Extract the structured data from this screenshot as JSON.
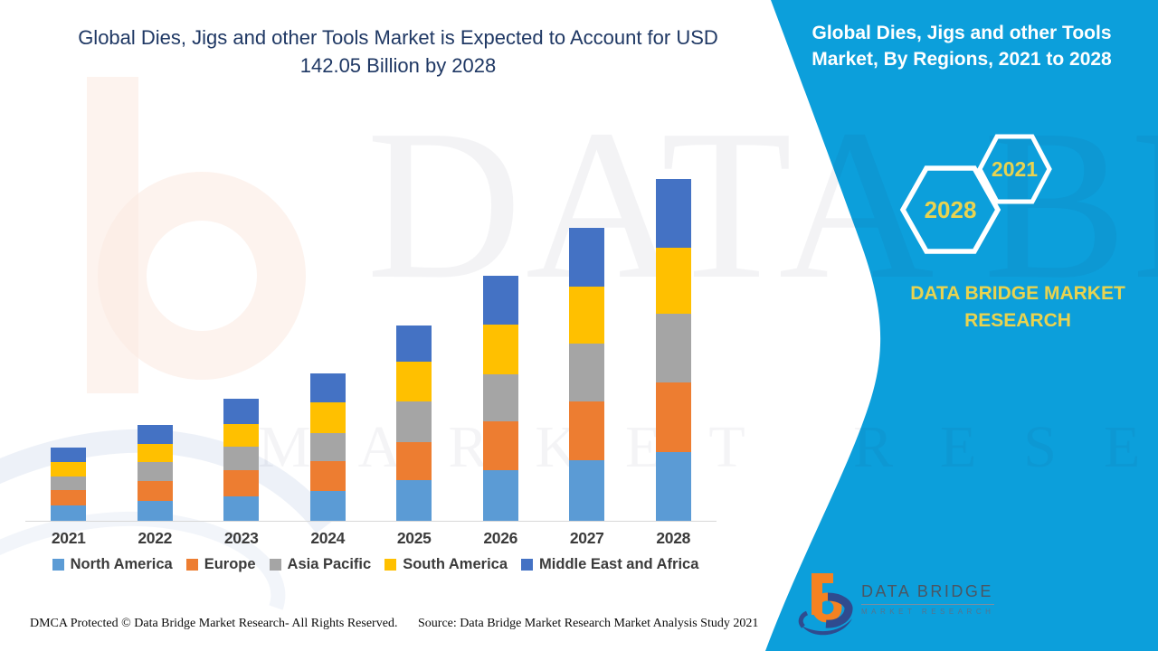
{
  "colors": {
    "panel_blue": "#0C9FDB",
    "gold": "#E9D34F",
    "title_navy": "#1F3864",
    "axis_text": "#3B3B3B",
    "logo_orange": "#F58220",
    "logo_navy": "#2F4B8F"
  },
  "header": {
    "title": "Global Dies, Jigs and other Tools Market is Expected to Account for USD 142.05 Billion by 2028"
  },
  "panel": {
    "title": "Global Dies, Jigs and other Tools Market, By Regions, 2021 to 2028",
    "badges": [
      {
        "label": "2028"
      },
      {
        "label": "2021"
      }
    ],
    "brand": "DATA BRIDGE MARKET RESEARCH"
  },
  "watermark": {
    "line1": "DATA BRIDGE",
    "line2": "MARKET RESEARCH"
  },
  "footer": {
    "dmca": "DMCA Protected © Data Bridge Market Research- All Rights Reserved.",
    "source": "Source: Data Bridge Market Research Market Analysis Study 2021",
    "logo_name": "DATA BRIDGE",
    "logo_subtitle": "MARKET RESEARCH"
  },
  "chart_data": {
    "type": "bar",
    "stacked": true,
    "title": "Global Dies, Jigs and other Tools Market is Expected to Account for USD 142.05 Billion by 2028",
    "unit": "USD Billion",
    "projected_2028_total": 142.05,
    "categories": [
      "2021",
      "2022",
      "2023",
      "2024",
      "2025",
      "2026",
      "2027",
      "2028"
    ],
    "series": [
      {
        "name": "North America",
        "color": "#5B9BD5",
        "values": [
          6.3,
          8.2,
          10.3,
          12.4,
          17.0,
          21.0,
          25.2,
          28.5
        ]
      },
      {
        "name": "Europe",
        "color": "#ED7D31",
        "values": [
          6.5,
          8.5,
          10.6,
          12.6,
          15.7,
          20.5,
          24.5,
          28.9
        ]
      },
      {
        "name": "Asia Pacific",
        "color": "#A5A5A5",
        "values": [
          5.7,
          7.8,
          9.8,
          11.6,
          17.0,
          19.5,
          24.1,
          28.7
        ]
      },
      {
        "name": "South America",
        "color": "#FFC000",
        "values": [
          5.9,
          7.4,
          9.7,
          12.8,
          16.3,
          20.7,
          23.6,
          27.25
        ]
      },
      {
        "name": "Middle East and Africa",
        "color": "#4472C4",
        "values": [
          6.1,
          8.0,
          10.5,
          11.7,
          15.3,
          20.1,
          24.2,
          28.7
        ]
      }
    ],
    "estimated_totals": [
      30.5,
      39.9,
      50.9,
      61.1,
      81.3,
      101.8,
      121.6,
      142.05
    ],
    "y_axis_visible": false,
    "gridlines": false,
    "legend_position": "bottom"
  }
}
